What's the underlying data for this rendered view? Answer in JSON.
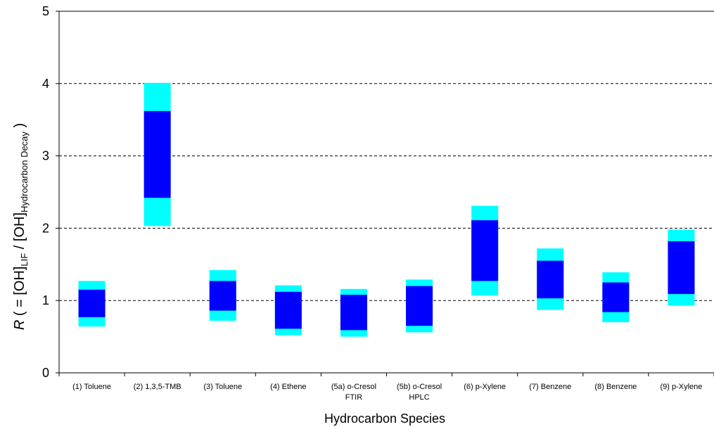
{
  "chart_data": {
    "type": "bar",
    "subtype": "floating-range",
    "xlabel": "Hydrocarbon Species",
    "ylabel": {
      "italic": "R",
      "p1": " ( = [OH]",
      "sub1": "LIF",
      "p2": " / [OH]",
      "sub2": "Hydrocarbon Decay",
      "p3": " )"
    },
    "ylim": [
      0,
      5
    ],
    "yticks": [
      "0",
      "1",
      "2",
      "3",
      "4",
      "5"
    ],
    "grid": "horizontal dashed at y = 1, 2, 3, 4",
    "colors": {
      "outer": "#00FFFF",
      "inner": "#0000FF"
    },
    "categories": [
      [
        "(1) Toluene"
      ],
      [
        "(2) 1,3,5-TMB"
      ],
      [
        "(3) Toluene"
      ],
      [
        "(4) Ethene"
      ],
      [
        "(5a) o-Cresol",
        "FTIR"
      ],
      [
        "(5b) o-Cresol",
        "HPLC"
      ],
      [
        "(6) p-Xylene"
      ],
      [
        "(7) Benzene"
      ],
      [
        "(8) Benzene"
      ],
      [
        "(9) p-Xylene"
      ]
    ],
    "series": [
      {
        "outer": [
          0.64,
          1.27
        ],
        "inner": [
          0.77,
          1.15
        ]
      },
      {
        "outer": [
          2.03,
          4.01
        ],
        "inner": [
          2.42,
          3.62
        ]
      },
      {
        "outer": [
          0.72,
          1.42
        ],
        "inner": [
          0.86,
          1.27
        ]
      },
      {
        "outer": [
          0.52,
          1.21
        ],
        "inner": [
          0.61,
          1.12
        ]
      },
      {
        "outer": [
          0.5,
          1.16
        ],
        "inner": [
          0.59,
          1.08
        ]
      },
      {
        "outer": [
          0.56,
          1.29
        ],
        "inner": [
          0.65,
          1.2
        ]
      },
      {
        "outer": [
          1.07,
          2.31
        ],
        "inner": [
          1.27,
          2.11
        ]
      },
      {
        "outer": [
          0.87,
          1.72
        ],
        "inner": [
          1.03,
          1.55
        ]
      },
      {
        "outer": [
          0.7,
          1.39
        ],
        "inner": [
          0.84,
          1.25
        ]
      },
      {
        "outer": [
          0.93,
          1.98
        ],
        "inner": [
          1.09,
          1.82
        ]
      }
    ]
  }
}
